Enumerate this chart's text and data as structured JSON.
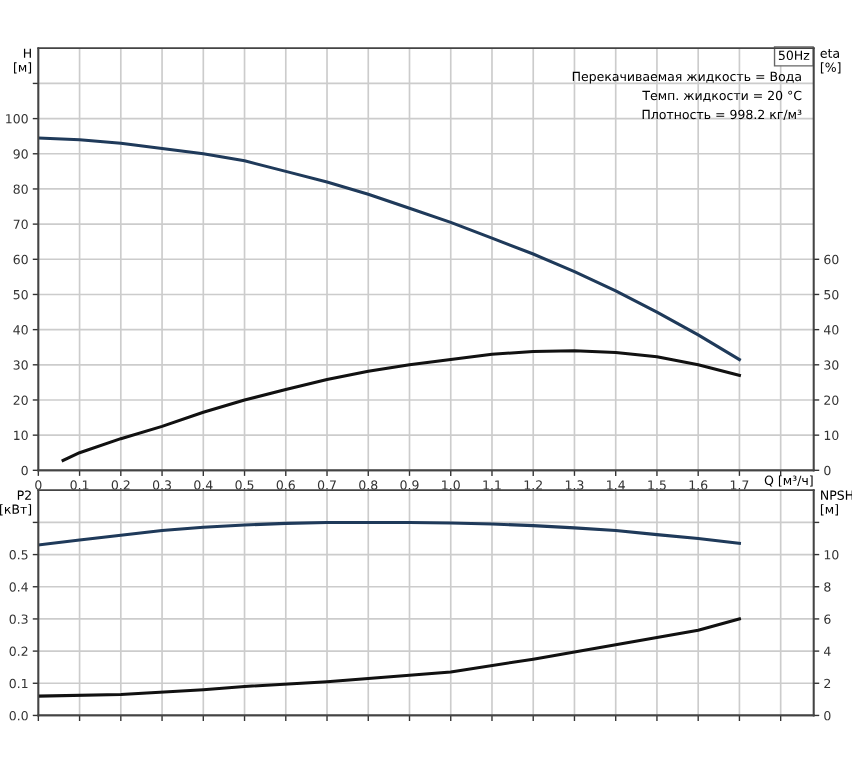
{
  "chart_data": [
    {
      "type": "line",
      "xlabel": "Q [м³/ч]",
      "ylabel": "H\n[м]",
      "y2label": "eta\n[%]",
      "xlim": [
        0,
        1.88
      ],
      "ylim": [
        0,
        120
      ],
      "y2lim": [
        0,
        120
      ],
      "xticks": [
        0,
        0.1,
        0.2,
        0.3,
        0.4,
        0.5,
        0.6,
        0.7,
        0.8,
        0.9,
        {
          "value": 1,
          "label": "1.0"
        },
        1.1,
        1.2,
        1.3,
        1.4,
        1.5,
        1.6,
        1.7,
        {
          "value": 1.8,
          "label": null
        }
      ],
      "yticks": [
        0,
        10,
        20,
        30,
        40,
        50,
        60,
        70,
        80,
        90,
        100,
        {
          "value": 110,
          "label": null
        }
      ],
      "y2ticks": [
        0,
        10,
        20,
        30,
        40,
        50,
        60
      ],
      "grid": true,
      "legend": false,
      "annotations": [
        "50Hz",
        "Перекачиваемая жидкость = Вода",
        "Темп. жидкости = 20 °C",
        "Плотность = 998.2 кг/м³"
      ],
      "series": [
        {
          "color": "#1f3a5a",
          "x": [
            0,
            0.1,
            0.2,
            0.3,
            0.4,
            0.5,
            0.6,
            0.7,
            0.8,
            0.9,
            1.0,
            1.1,
            1.2,
            1.3,
            1.4,
            1.5,
            1.6,
            1.7
          ],
          "values": [
            94.5,
            94,
            93,
            91.5,
            90,
            88,
            85,
            82,
            78.5,
            74.5,
            70.5,
            66,
            61.5,
            56.5,
            51,
            45,
            38.5,
            31.5
          ]
        },
        {
          "color": "#111111",
          "axis": "y2",
          "x": [
            0.06,
            0.1,
            0.2,
            0.3,
            0.4,
            0.5,
            0.6,
            0.7,
            0.8,
            0.9,
            1.0,
            1.1,
            1.2,
            1.3,
            1.4,
            1.5,
            1.6,
            1.7
          ],
          "values": [
            2.8,
            5,
            9,
            12.5,
            16.5,
            20,
            23,
            25.8,
            28.2,
            30,
            31.5,
            33,
            33.8,
            34,
            33.5,
            32.3,
            30,
            27
          ]
        }
      ]
    },
    {
      "type": "line",
      "ylabel": "P2\n[кВт]",
      "y2label": "NPSH\n[м]",
      "xlim": [
        0,
        1.88
      ],
      "ylim": [
        0,
        0.7
      ],
      "y2lim": [
        0,
        14
      ],
      "tick_labels": "y",
      "xticks": [
        0,
        0.1,
        0.2,
        0.3,
        0.4,
        0.5,
        0.6,
        0.7,
        0.8,
        0.9,
        1.0,
        1.1,
        1.2,
        1.3,
        1.4,
        1.5,
        1.6,
        1.7,
        1.8
      ],
      "yticks": [
        {
          "value": 0,
          "label": "0.0"
        },
        0.1,
        0.2,
        0.3,
        0.4,
        0.5,
        {
          "value": 0.6,
          "label": null
        }
      ],
      "y2ticks": [
        0,
        2,
        4,
        6,
        8,
        10,
        {
          "value": 12,
          "label": null
        }
      ],
      "grid": true,
      "legend": false,
      "series": [
        {
          "color": "#1f3a5a",
          "x": [
            0,
            0.1,
            0.2,
            0.3,
            0.4,
            0.5,
            0.6,
            0.7,
            0.8,
            0.9,
            1.0,
            1.1,
            1.2,
            1.3,
            1.4,
            1.5,
            1.6,
            1.7
          ],
          "values": [
            0.53,
            0.545,
            0.56,
            0.575,
            0.585,
            0.592,
            0.597,
            0.6,
            0.6,
            0.6,
            0.598,
            0.595,
            0.59,
            0.583,
            0.575,
            0.562,
            0.55,
            0.535
          ]
        },
        {
          "color": "#111111",
          "axis": "y2",
          "x": [
            0,
            0.2,
            0.4,
            0.5,
            0.7,
            0.9,
            1.0,
            1.2,
            1.4,
            1.6,
            1.7
          ],
          "values": [
            1.2,
            1.3,
            1.6,
            1.8,
            2.1,
            2.5,
            2.7,
            3.5,
            4.4,
            5.3,
            6.0
          ]
        }
      ]
    }
  ]
}
